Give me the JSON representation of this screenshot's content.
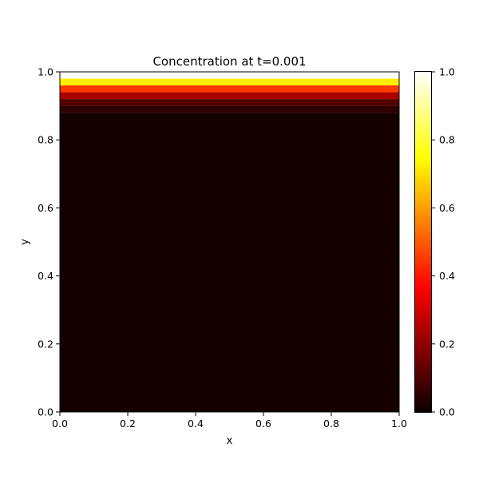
{
  "chart_data": {
    "type": "heatmap",
    "title": "Concentration at t=0.001",
    "xlabel": "x",
    "ylabel": "y",
    "xlim": [
      0.0,
      1.0
    ],
    "ylim": [
      0.0,
      1.0
    ],
    "x_ticks": [
      "0.0",
      "0.2",
      "0.4",
      "0.6",
      "0.8",
      "1.0"
    ],
    "y_ticks": [
      "0.0",
      "0.2",
      "0.4",
      "0.6",
      "0.8",
      "1.0"
    ],
    "colormap": "hot",
    "colorbar": {
      "range": [
        0.0,
        1.0
      ],
      "ticks": [
        "0.0",
        "0.2",
        "0.4",
        "0.6",
        "0.8",
        "1.0"
      ]
    },
    "grid": false,
    "rows": [
      {
        "y_min": 0.98,
        "y_max": 1.0,
        "value": 1.0
      },
      {
        "y_min": 0.96,
        "y_max": 0.98,
        "value": 0.72
      },
      {
        "y_min": 0.94,
        "y_max": 0.96,
        "value": 0.45
      },
      {
        "y_min": 0.92,
        "y_max": 0.94,
        "value": 0.24
      },
      {
        "y_min": 0.9,
        "y_max": 0.92,
        "value": 0.11
      },
      {
        "y_min": 0.88,
        "y_max": 0.9,
        "value": 0.05
      },
      {
        "y_min": 0.0,
        "y_max": 0.88,
        "value": 0.015
      }
    ]
  }
}
